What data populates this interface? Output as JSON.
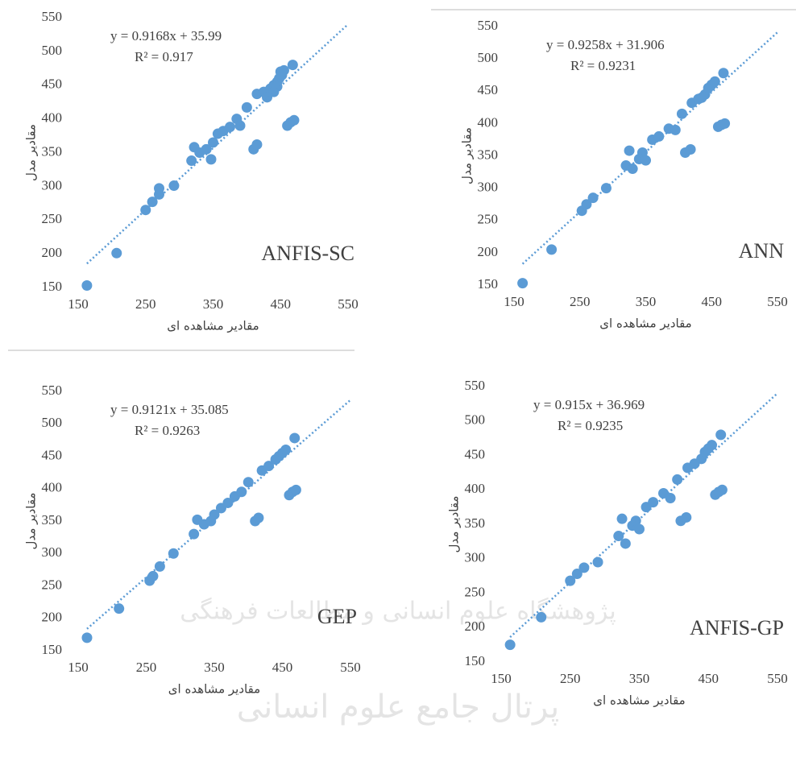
{
  "chart_data": [
    {
      "type": "scatter",
      "model": "ANFIS-SC",
      "equation": "y = 0.9168x + 35.99",
      "r2_label": "R² = 0.917",
      "trendline": {
        "slope": 0.9168,
        "intercept": 35.99
      },
      "xlabel": "مقادیر مشاهده ای",
      "ylabel": "مقادیر مدل",
      "color": "#5b9bd5",
      "xlim": [
        150,
        550
      ],
      "ylim": [
        150,
        550
      ],
      "xticks": [
        150,
        250,
        350,
        450,
        550
      ],
      "yticks": [
        150,
        200,
        250,
        300,
        350,
        400,
        450,
        500,
        550
      ],
      "series": [
        {
          "x": [
            163,
            207,
            250,
            260,
            270,
            270,
            292,
            318,
            322,
            330,
            340,
            347,
            350,
            357,
            365,
            375,
            385,
            390,
            400,
            410,
            415,
            415,
            425,
            430,
            435,
            440,
            445,
            448,
            450,
            452,
            455,
            460,
            465,
            470,
            468,
            440,
            445
          ],
          "values": [
            153,
            201,
            265,
            277,
            288,
            297,
            301,
            338,
            358,
            350,
            355,
            340,
            365,
            378,
            382,
            388,
            400,
            390,
            417,
            355,
            362,
            437,
            440,
            432,
            445,
            450,
            455,
            460,
            470,
            465,
            472,
            390,
            395,
            398,
            480,
            440,
            448
          ]
        }
      ]
    },
    {
      "type": "scatter",
      "model": "ANN",
      "equation": "y = 0.9258x + 31.906",
      "r2_label": "R² = 0.9231",
      "trendline": {
        "slope": 0.9258,
        "intercept": 31.906
      },
      "xlabel": "مقادیر مشاهده ای",
      "ylabel": "مقادیر مدل",
      "color": "#5b9bd5",
      "xlim": [
        150,
        550
      ],
      "ylim": [
        150,
        550
      ],
      "xticks": [
        150,
        250,
        350,
        450,
        550
      ],
      "yticks": [
        150,
        200,
        250,
        300,
        350,
        400,
        450,
        500,
        550
      ],
      "series": [
        {
          "x": [
            163,
            207,
            253,
            260,
            270,
            290,
            320,
            325,
            330,
            340,
            345,
            350,
            360,
            370,
            385,
            395,
            405,
            410,
            418,
            420,
            430,
            440,
            445,
            450,
            455,
            460,
            465,
            470,
            468,
            435
          ],
          "values": [
            153,
            205,
            265,
            275,
            285,
            300,
            335,
            358,
            330,
            345,
            355,
            343,
            375,
            380,
            392,
            390,
            415,
            355,
            360,
            432,
            438,
            445,
            455,
            460,
            465,
            395,
            398,
            400,
            478,
            440
          ]
        }
      ]
    },
    {
      "type": "scatter",
      "model": "GEP",
      "equation": "y = 0.9121x + 35.085",
      "r2_label": "R² = 0.9263",
      "trendline": {
        "slope": 0.9121,
        "intercept": 35.085
      },
      "xlabel": "مقادیر مشاهده ای",
      "ylabel": "مقادیر مدل",
      "color": "#5b9bd5",
      "xlim": [
        150,
        550
      ],
      "ylim": [
        150,
        550
      ],
      "xticks": [
        150,
        250,
        350,
        450,
        550
      ],
      "yticks": [
        150,
        200,
        250,
        300,
        350,
        400,
        450,
        500,
        550
      ],
      "series": [
        {
          "x": [
            163,
            210,
            255,
            260,
            270,
            290,
            320,
            325,
            335,
            345,
            350,
            360,
            370,
            380,
            390,
            400,
            410,
            415,
            420,
            430,
            440,
            445,
            450,
            455,
            460,
            465,
            470,
            468
          ],
          "values": [
            170,
            215,
            258,
            265,
            280,
            300,
            330,
            352,
            345,
            350,
            360,
            370,
            378,
            388,
            395,
            410,
            350,
            355,
            428,
            435,
            445,
            450,
            455,
            460,
            390,
            395,
            398,
            478
          ]
        }
      ]
    },
    {
      "type": "scatter",
      "model": "ANFIS-GP",
      "equation": "y = 0.915x + 36.969",
      "r2_label": "R² = 0.9235",
      "trendline": {
        "slope": 0.915,
        "intercept": 36.969
      },
      "xlabel": "مقادیر مشاهده ای",
      "ylabel": "مقادیر مدل",
      "color": "#5b9bd5",
      "xlim": [
        150,
        550
      ],
      "ylim": [
        150,
        550
      ],
      "xticks": [
        150,
        250,
        350,
        450,
        550
      ],
      "yticks": [
        150,
        200,
        250,
        300,
        350,
        400,
        450,
        500,
        550
      ],
      "series": [
        {
          "x": [
            163,
            208,
            250,
            260,
            270,
            290,
            320,
            325,
            330,
            340,
            345,
            350,
            360,
            370,
            385,
            395,
            405,
            410,
            418,
            420,
            430,
            440,
            445,
            450,
            455,
            460,
            465,
            470,
            468
          ],
          "values": [
            175,
            215,
            268,
            278,
            287,
            295,
            333,
            358,
            322,
            348,
            355,
            343,
            375,
            382,
            395,
            388,
            415,
            355,
            360,
            432,
            438,
            445,
            455,
            460,
            465,
            393,
            397,
            400,
            480
          ]
        }
      ]
    }
  ],
  "watermark": {
    "arc_text": "پژوهشگاه علوم انسانی و مطالعات فرهنگی",
    "portal_text": "پرتال جامع علوم انسانی"
  }
}
